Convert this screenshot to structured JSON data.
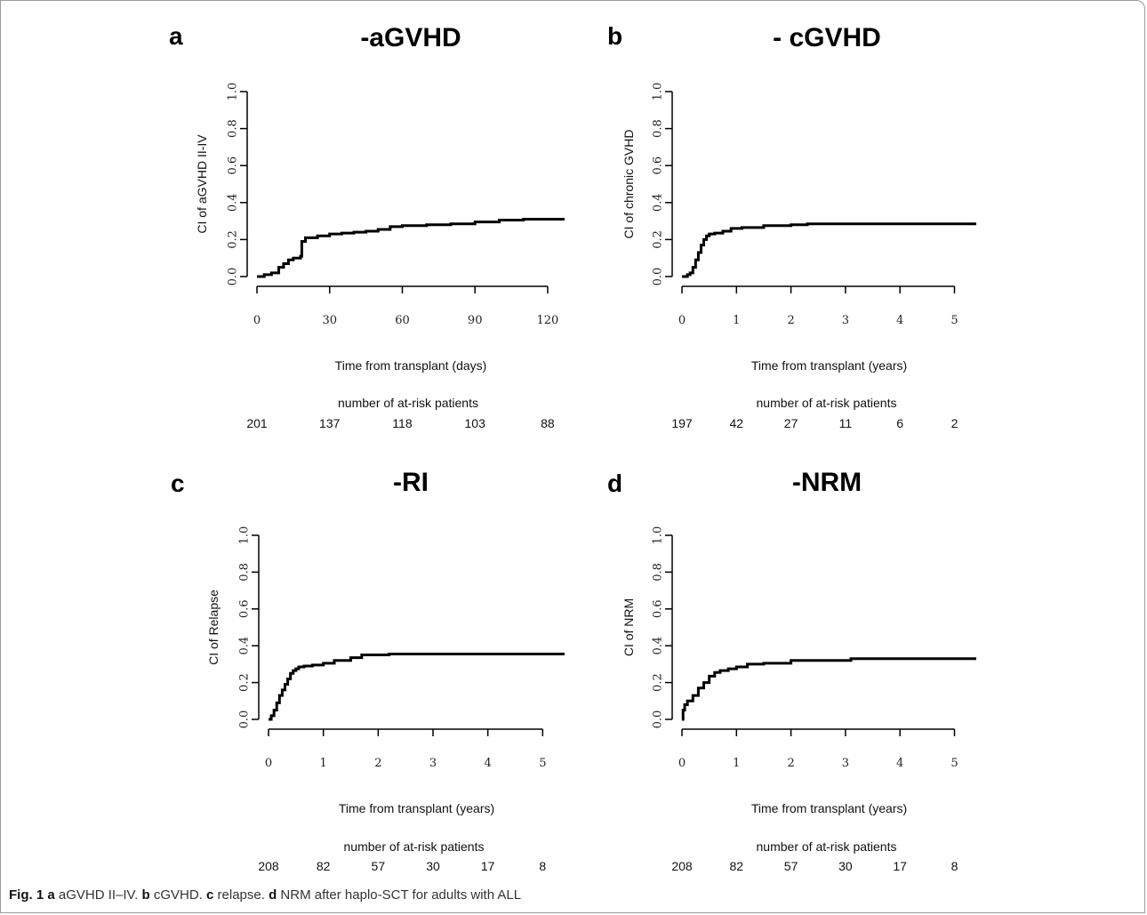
{
  "caption": {
    "fig_label": "Fig. 1",
    "parts": [
      {
        "letter": "a",
        "text": " aGVHD II–IV. "
      },
      {
        "letter": "b",
        "text": " cGVHD. "
      },
      {
        "letter": "c",
        "text": " relapse. "
      },
      {
        "letter": "d",
        "text": " NRM after haplo-SCT for adults with ALL"
      }
    ]
  },
  "chart_data": [
    {
      "type": "line",
      "panel_letter": "a",
      "title": "-aGVHD",
      "xlabel": "Time from transplant (days)",
      "ylabel": "CI of aGVHD II-IV",
      "xlim": [
        0,
        127
      ],
      "ylim": [
        0,
        1
      ],
      "xticks": [
        0,
        30,
        60,
        90,
        120
      ],
      "yticks": [
        0.0,
        0.2,
        0.4,
        0.6,
        0.8,
        1.0
      ],
      "ytick_labels": [
        "0.0",
        "0.2",
        "0.4",
        "0.6",
        "0.8",
        "1.0"
      ],
      "step": true,
      "series": [
        {
          "x": [
            0,
            3,
            6,
            9,
            11,
            13,
            15,
            18,
            18.5,
            20,
            25,
            30,
            35,
            40,
            45,
            50,
            55,
            60,
            70,
            80,
            90,
            100,
            110,
            127
          ],
          "y": [
            0,
            0.01,
            0.02,
            0.05,
            0.07,
            0.09,
            0.1,
            0.11,
            0.19,
            0.21,
            0.22,
            0.23,
            0.235,
            0.24,
            0.245,
            0.255,
            0.27,
            0.275,
            0.28,
            0.285,
            0.295,
            0.305,
            0.31,
            0.31
          ]
        }
      ],
      "risk_table": {
        "title": "number of at-risk patients",
        "at": [
          0,
          30,
          60,
          90,
          120
        ],
        "counts": [
          "201",
          "137",
          "118",
          "103",
          "88"
        ]
      }
    },
    {
      "type": "line",
      "panel_letter": "b",
      "title": "- cGVHD",
      "xlabel": "Time from transplant (years)",
      "ylabel": "CI of chronic GVHD",
      "xlim": [
        0,
        5.4
      ],
      "ylim": [
        0,
        1
      ],
      "xticks": [
        0,
        1,
        2,
        3,
        4,
        5
      ],
      "yticks": [
        0.0,
        0.2,
        0.4,
        0.6,
        0.8,
        1.0
      ],
      "ytick_labels": [
        "0.0",
        "0.2",
        "0.4",
        "0.6",
        "0.8",
        "1.0"
      ],
      "step": true,
      "series": [
        {
          "x": [
            0,
            0.1,
            0.15,
            0.2,
            0.25,
            0.3,
            0.35,
            0.4,
            0.45,
            0.5,
            0.6,
            0.75,
            0.9,
            1.1,
            1.5,
            2.0,
            2.3,
            5.4
          ],
          "y": [
            0,
            0.01,
            0.02,
            0.05,
            0.09,
            0.13,
            0.17,
            0.2,
            0.22,
            0.23,
            0.235,
            0.245,
            0.26,
            0.265,
            0.275,
            0.28,
            0.285,
            0.285
          ]
        }
      ],
      "risk_table": {
        "title": "number of at-risk patients",
        "at": [
          0,
          1,
          2,
          3,
          4,
          5
        ],
        "counts": [
          "197",
          "42",
          "27",
          "11",
          "6",
          "2"
        ]
      }
    },
    {
      "type": "line",
      "panel_letter": "c",
      "title": "-RI",
      "xlabel": "Time from transplant (years)",
      "ylabel": "CI of Relapse",
      "xlim": [
        0,
        5.4
      ],
      "ylim": [
        0,
        1
      ],
      "xticks": [
        0,
        1,
        2,
        3,
        4,
        5
      ],
      "yticks": [
        0.0,
        0.2,
        0.4,
        0.6,
        0.8,
        1.0
      ],
      "ytick_labels": [
        "0.0",
        "0.2",
        "0.4",
        "0.6",
        "0.8",
        "1.0"
      ],
      "step": true,
      "series": [
        {
          "x": [
            0,
            0.05,
            0.1,
            0.15,
            0.2,
            0.25,
            0.3,
            0.35,
            0.4,
            0.45,
            0.5,
            0.55,
            0.65,
            0.8,
            1.0,
            1.2,
            1.5,
            1.7,
            2.2,
            5.4
          ],
          "y": [
            0,
            0.02,
            0.05,
            0.09,
            0.13,
            0.16,
            0.19,
            0.22,
            0.25,
            0.265,
            0.275,
            0.285,
            0.29,
            0.295,
            0.305,
            0.32,
            0.335,
            0.35,
            0.355,
            0.355
          ]
        }
      ],
      "risk_table": {
        "title": "number of at-risk patients",
        "at": [
          0,
          1,
          2,
          3,
          4,
          5
        ],
        "counts": [
          "208",
          "82",
          "57",
          "30",
          "17",
          "8"
        ]
      }
    },
    {
      "type": "line",
      "panel_letter": "d",
      "title": "-NRM",
      "xlabel": "Time from transplant (years)",
      "ylabel": "CI of NRM",
      "xlim": [
        0,
        5.4
      ],
      "ylim": [
        0,
        1
      ],
      "xticks": [
        0,
        1,
        2,
        3,
        4,
        5
      ],
      "yticks": [
        0.0,
        0.2,
        0.4,
        0.6,
        0.8,
        1.0
      ],
      "ytick_labels": [
        "0.0",
        "0.2",
        "0.4",
        "0.6",
        "0.8",
        "1.0"
      ],
      "step": true,
      "series": [
        {
          "x": [
            0,
            0.02,
            0.05,
            0.1,
            0.2,
            0.3,
            0.4,
            0.5,
            0.6,
            0.7,
            0.85,
            1.0,
            1.2,
            1.5,
            2.0,
            2.5,
            3.1,
            5.4
          ],
          "y": [
            0,
            0.05,
            0.08,
            0.1,
            0.13,
            0.17,
            0.2,
            0.235,
            0.255,
            0.265,
            0.275,
            0.285,
            0.3,
            0.305,
            0.32,
            0.32,
            0.33,
            0.33
          ]
        }
      ],
      "risk_table": {
        "title": "number of at-risk patients",
        "at": [
          0,
          1,
          2,
          3,
          4,
          5
        ],
        "counts": [
          "208",
          "82",
          "57",
          "30",
          "17",
          "8"
        ]
      }
    }
  ]
}
